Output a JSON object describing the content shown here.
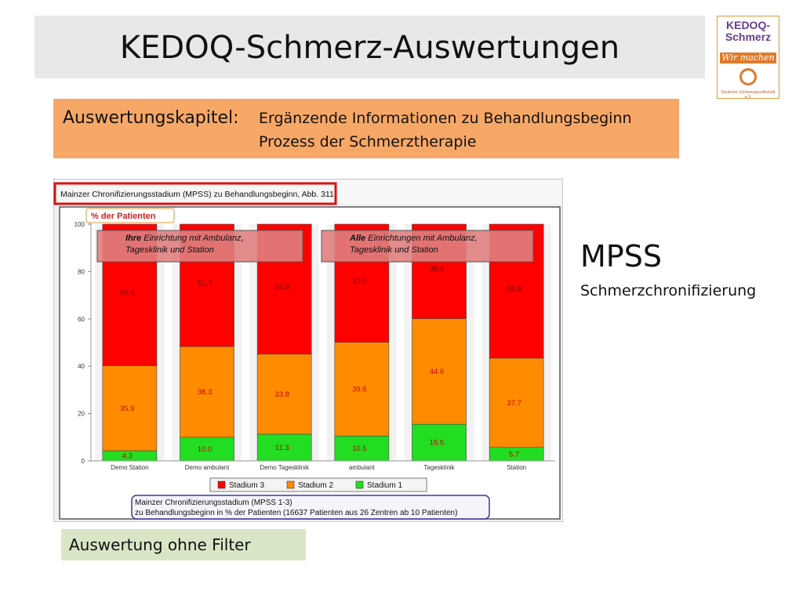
{
  "header": {
    "title": "KEDOQ-Schmerz-Auswertungen"
  },
  "logo": {
    "brand_line1": "KEDOQ-",
    "brand_line2": "Schmerz",
    "slogan": "Wir machen mit.",
    "org": "Deutsche Schmerzgesellschaft e.V."
  },
  "chapter": {
    "label": "Auswertungskapitel:",
    "line1": "Ergänzende Informationen zu Behandlungsbeginn",
    "line2": "Prozess der Schmerztherapie"
  },
  "side": {
    "heading": "MPSS",
    "subheading": "Schmerzchronifizierung"
  },
  "filter": {
    "label": "Auswertung ohne Filter"
  },
  "colors": {
    "stadium3": "#ff0000",
    "stadium2": "#ff8c00",
    "stadium1": "#22dd22",
    "highlight_frame": "#dd1111"
  },
  "chart_data": {
    "type": "bar",
    "stacked": true,
    "title": "Mainzer Chronifizierungsstadium (MPSS) zu Behandlungsbeginn, Abb. 311",
    "ylabel": "% der Patienten",
    "ylim": [
      0,
      100
    ],
    "yticks": [
      "0",
      "20",
      "40",
      "60",
      "80",
      "100"
    ],
    "categories": [
      "Demo Station",
      "Demo ambulant",
      "Demo Tagesklinik",
      "ambulant",
      "Tagesklinik",
      "Station"
    ],
    "series": [
      {
        "name": "Stadium 1",
        "values": [
          4.3,
          10.0,
          11.3,
          10.5,
          15.5,
          5.7
        ],
        "labels": [
          "4.3",
          "10.0",
          "11.3",
          "10.5",
          "15.5",
          "5.7"
        ]
      },
      {
        "name": "Stadium 2",
        "values": [
          35.9,
          38.3,
          33.8,
          39.6,
          44.6,
          37.7
        ],
        "labels": [
          "35.9",
          "38.3",
          "33.8",
          "39.6",
          "44.6",
          "37.7"
        ]
      },
      {
        "name": "Stadium 3",
        "values": [
          59.8,
          51.7,
          54.9,
          49.9,
          39.9,
          56.6
        ],
        "labels": [
          "59.8",
          "51.7",
          "54.9",
          "49.9",
          "39.9",
          "56.6"
        ]
      }
    ],
    "legend": {
      "placement": "bottom",
      "order": [
        "Stadium 3",
        "Stadium 2",
        "Stadium 1"
      ]
    },
    "annotations": [
      {
        "bold": "Ihre",
        "text": " Einrichtung mit Ambulanz,",
        "line2": "Tagesklinik und Station"
      },
      {
        "bold": "Alle",
        "text": " Einrichtungen mit Ambulanz,",
        "line2": "Tagesklinik und Station"
      }
    ],
    "footnote": {
      "line1": "Mainzer Chronifizierungsstadium (MPSS 1-3)",
      "line2": "zu Behandlungsbeginn in % der Patienten (16637 Patienten aus 26 Zentren ab 10 Patienten)"
    }
  }
}
